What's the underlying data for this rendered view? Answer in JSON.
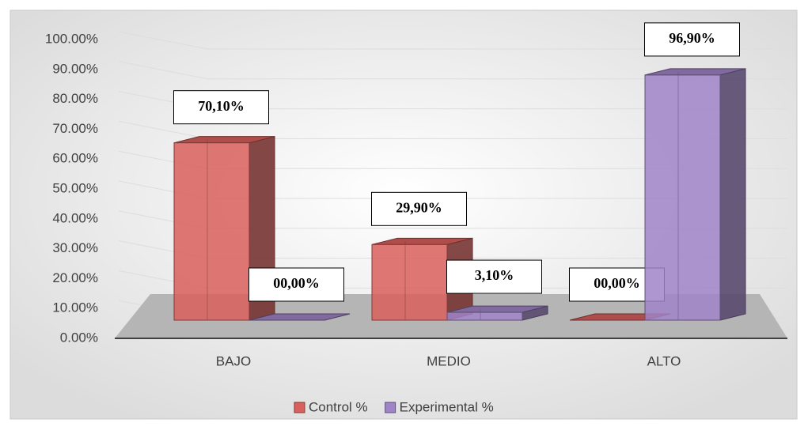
{
  "chart_data": {
    "type": "bar3d",
    "categories": [
      "BAJO",
      "MEDIO",
      "ALTO"
    ],
    "series": [
      {
        "name": "Control %",
        "color": "#d9605c",
        "values": [
          70.1,
          29.9,
          0
        ],
        "value_labels": [
          "70,10%",
          "29,90%",
          "00,00%"
        ]
      },
      {
        "name": "Experimental %",
        "color": "#a084c8",
        "values": [
          0,
          3.1,
          96.9
        ],
        "value_labels": [
          "00,00%",
          "3,10%",
          "96,90%"
        ]
      }
    ],
    "ylim": [
      0,
      100
    ],
    "yticks": [
      {
        "value": 0,
        "label": "0.00%"
      },
      {
        "value": 10,
        "label": "10.00%"
      },
      {
        "value": 20,
        "label": "20.00%"
      },
      {
        "value": 30,
        "label": "30.00%"
      },
      {
        "value": 40,
        "label": "40.00%"
      },
      {
        "value": 50,
        "label": "50.00%"
      },
      {
        "value": 60,
        "label": "60.00%"
      },
      {
        "value": 70,
        "label": "70.00%"
      },
      {
        "value": 80,
        "label": "80.00%"
      },
      {
        "value": 90,
        "label": "90.00%"
      },
      {
        "value": 100,
        "label": "100.00%"
      }
    ],
    "grid": true,
    "legend": "bottom"
  }
}
